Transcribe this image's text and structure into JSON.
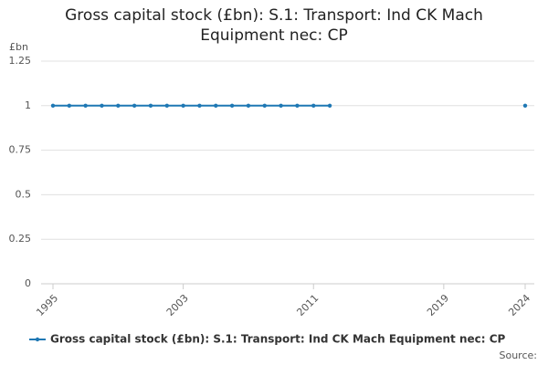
{
  "chart_data": {
    "type": "line",
    "title": "Gross capital stock (£bn): S.1: Transport: Ind CK Mach Equipment nec: CP",
    "y_label": "£bn",
    "source": "Source:",
    "x": [
      1995,
      1996,
      1997,
      1998,
      1999,
      2000,
      2001,
      2002,
      2003,
      2004,
      2005,
      2006,
      2007,
      2008,
      2009,
      2010,
      2011,
      2012,
      2013,
      2014,
      2015,
      2016,
      2017,
      2018,
      2019,
      2020,
      2021,
      2022,
      2023,
      2024
    ],
    "series": [
      {
        "name": "Gross capital stock (£bn): S.1: Transport: Ind CK Mach Equipment nec: CP",
        "color": "#1f78b4",
        "values": [
          1,
          1,
          1,
          1,
          1,
          1,
          1,
          1,
          1,
          1,
          1,
          1,
          1,
          1,
          1,
          1,
          1,
          1,
          null,
          null,
          null,
          null,
          null,
          null,
          null,
          null,
          null,
          null,
          null,
          1
        ]
      }
    ],
    "xlim": [
      1995,
      2024
    ],
    "xticks": [
      1995,
      2003,
      2011,
      2019,
      2024
    ],
    "ylim": [
      0,
      1.25
    ],
    "yticks": [
      0,
      0.25,
      0.5,
      0.75,
      1,
      1.25
    ],
    "grid": true,
    "legend": "bottom"
  }
}
